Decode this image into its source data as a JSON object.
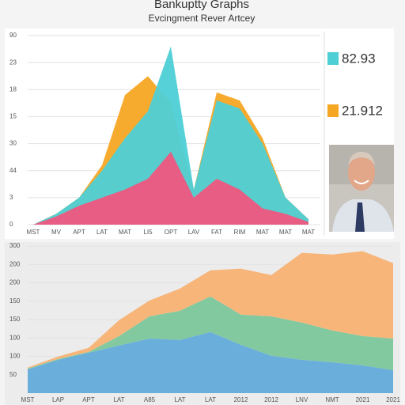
{
  "header": {
    "title": "Bankuptty Graphs",
    "subtitle": "Evcingment Rever Artcey"
  },
  "stats": [
    {
      "value": 82.93,
      "color": "#4ecfd6"
    },
    {
      "value": 21.912,
      "color": "#f5a623"
    }
  ],
  "chart_data": [
    {
      "type": "area",
      "stacked": false,
      "grid": true,
      "categories": [
        "MST",
        "MV",
        "APT",
        "LAT",
        "MAT",
        "LI5",
        "OPT",
        "LAV",
        "FAT",
        "RIM",
        "MAT",
        "MAT",
        "MAT"
      ],
      "ylim": [
        0,
        7
      ],
      "yticks": [
        {
          "value": 0,
          "label": "0"
        },
        {
          "value": 1,
          "label": "3"
        },
        {
          "value": 2,
          "label": "44"
        },
        {
          "value": 3,
          "label": "30"
        },
        {
          "value": 4,
          "label": "15"
        },
        {
          "value": 5,
          "label": "18"
        },
        {
          "value": 6,
          "label": "23"
        },
        {
          "value": 7,
          "label": "90"
        }
      ],
      "series": [
        {
          "name": "Orange",
          "color": "#f5a623",
          "values": [
            0,
            0.4,
            1.0,
            2.2,
            4.8,
            5.5,
            4.5,
            1.3,
            4.9,
            4.6,
            3.2,
            1.0,
            0.2
          ]
        },
        {
          "name": "Cyan",
          "color": "#4ecfd6",
          "values": [
            0,
            0.4,
            1.0,
            2.0,
            3.2,
            4.2,
            6.6,
            1.3,
            4.6,
            4.3,
            3.0,
            1.0,
            0.2
          ]
        },
        {
          "name": "Pink",
          "color": "#f0567e",
          "values": [
            0,
            0.3,
            0.7,
            1.0,
            1.3,
            1.7,
            2.7,
            1.0,
            1.7,
            1.3,
            0.6,
            0.4,
            0.1
          ]
        }
      ]
    },
    {
      "type": "area",
      "stacked": true,
      "grid": true,
      "categories": [
        "MST",
        "LAP",
        "APT",
        "LAT",
        "A85",
        "LAT",
        "LAT",
        "2012",
        "2012",
        "LNV",
        "NMT",
        "2021",
        "2021"
      ],
      "ylim": [
        0,
        8
      ],
      "yticks": [
        {
          "value": 1,
          "label": "50"
        },
        {
          "value": 2,
          "label": "100"
        },
        {
          "value": 3,
          "label": "100"
        },
        {
          "value": 4,
          "label": "150"
        },
        {
          "value": 5,
          "label": "150"
        },
        {
          "value": 6,
          "label": "200"
        },
        {
          "value": 7,
          "label": "200"
        },
        {
          "value": 8,
          "label": "300"
        }
      ],
      "series": [
        {
          "name": "Blue",
          "color": "#6aaedc",
          "values": [
            1.29,
            1.81,
            2.2,
            2.59,
            2.97,
            2.89,
            3.32,
            2.63,
            2.03,
            1.81,
            1.68,
            1.51,
            1.25
          ]
        },
        {
          "name": "Green",
          "color": "#82c9a0",
          "values": [
            0.05,
            0.05,
            0.04,
            0.51,
            1.21,
            1.59,
            1.94,
            1.64,
            2.15,
            2.03,
            1.73,
            1.59,
            1.72
          ]
        },
        {
          "name": "Peach",
          "color": "#f7b57a",
          "values": [
            0.05,
            0.13,
            0.22,
            0.87,
            0.86,
            1.21,
            1.42,
            2.5,
            2.24,
            3.79,
            4.13,
            4.62,
            4.1
          ]
        }
      ]
    }
  ]
}
